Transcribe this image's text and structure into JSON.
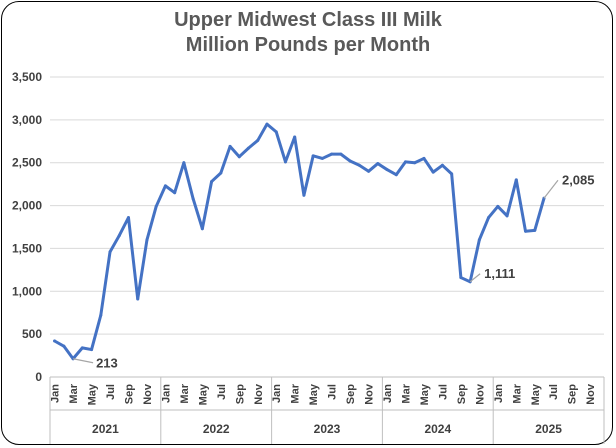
{
  "chart_data": {
    "type": "line",
    "title_lines": [
      "Upper Midwest Class III Milk",
      "Million Pounds per Month"
    ],
    "ylim": [
      0,
      3500
    ],
    "yticks": [
      0,
      500,
      1000,
      1500,
      2000,
      2500,
      3000,
      3500
    ],
    "ytick_labels": [
      "0",
      "500",
      "1,000",
      "1,500",
      "2,000",
      "2,500",
      "3,000",
      "3,500"
    ],
    "grid": true,
    "legend": "none",
    "month_labels": [
      "Jan",
      "Mar",
      "May",
      "Jul",
      "Sep",
      "Nov"
    ],
    "years": [
      "2021",
      "2022",
      "2023",
      "2024",
      "2025"
    ],
    "series": [
      {
        "values": [
          420,
          360,
          213,
          340,
          320,
          720,
          1460,
          1650,
          1860,
          910,
          1600,
          1990,
          2230,
          2150,
          2500,
          2080,
          1730,
          2280,
          2380,
          2690,
          2570,
          2670,
          2760,
          2950,
          2860,
          2510,
          2800,
          2120,
          2580,
          2550,
          2600,
          2600,
          2520,
          2470,
          2400,
          2490,
          2420,
          2360,
          2510,
          2500,
          2550,
          2390,
          2470,
          2370,
          1160,
          1111,
          1600,
          1860,
          1990,
          1880,
          2300,
          1700,
          1710,
          2085
        ]
      }
    ],
    "data_labels": [
      {
        "index": 2,
        "text": "213"
      },
      {
        "index": 45,
        "text": "1,111"
      },
      {
        "index": 53,
        "text": "2,085"
      }
    ],
    "colors": {
      "line": "#4472C4",
      "grid": "#d9d9d9",
      "axis": "#bfbfbf",
      "text": "#404040",
      "title": "#595959",
      "leader": "#a6a6a6"
    }
  }
}
